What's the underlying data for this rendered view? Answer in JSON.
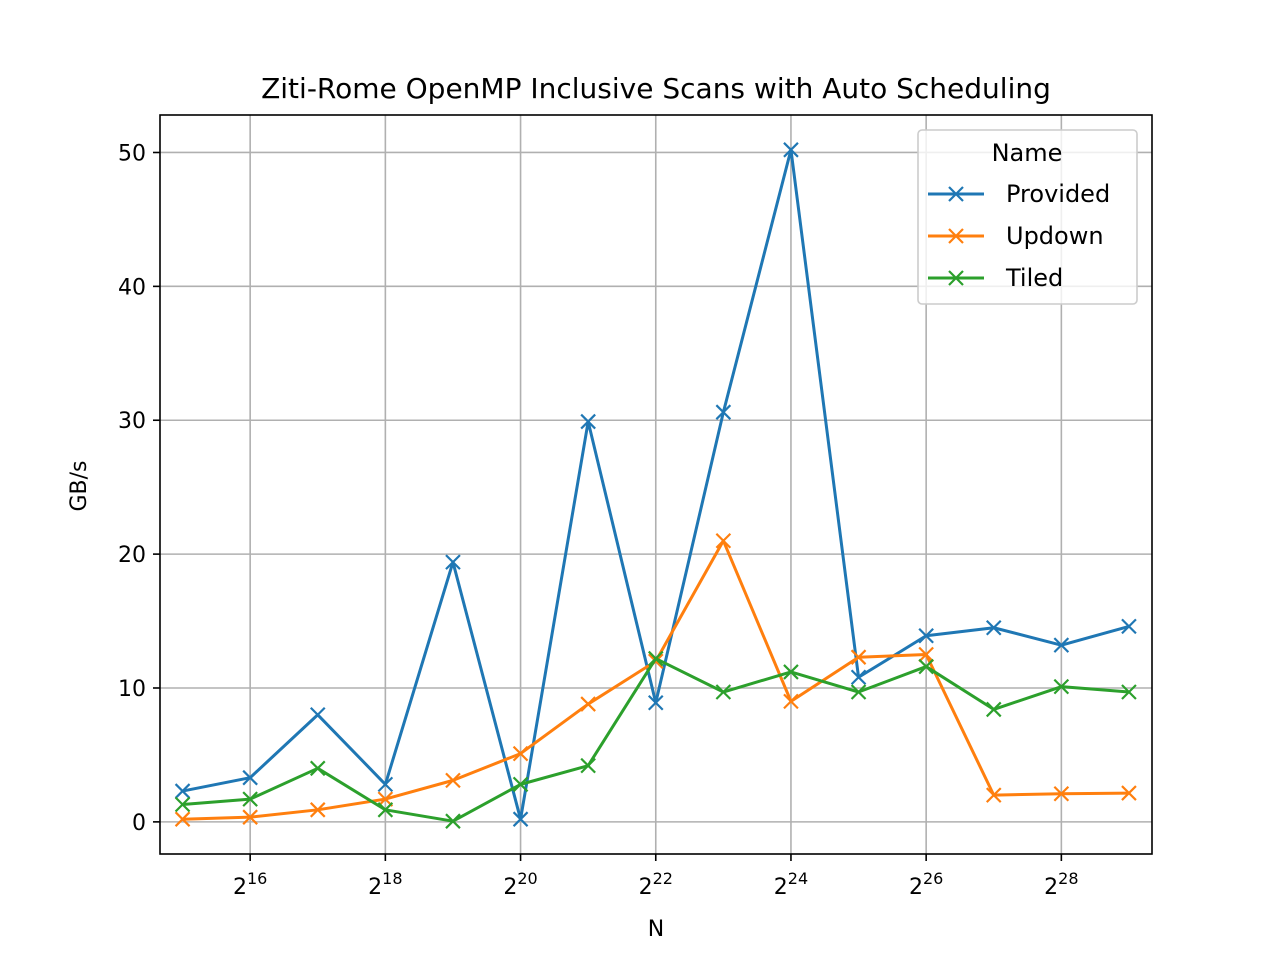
{
  "chart_data": {
    "type": "line",
    "title": "Ziti-Rome OpenMP Inclusive Scans with Auto Scheduling",
    "xlabel": "N",
    "ylabel": "GB/s",
    "xscale": "log2",
    "x": [
      32768,
      65536,
      131072,
      262144,
      524288,
      1048576,
      2097152,
      4194304,
      8388608,
      16777216,
      33554432,
      67108864,
      134217728,
      268435456,
      536870912
    ],
    "xlim": [
      26000,
      680000000
    ],
    "ylim": [
      -2.4,
      52.8
    ],
    "x_ticks": [
      {
        "value": 65536,
        "base": "2",
        "exp": "16"
      },
      {
        "value": 262144,
        "base": "2",
        "exp": "18"
      },
      {
        "value": 1048576,
        "base": "2",
        "exp": "20"
      },
      {
        "value": 4194304,
        "base": "2",
        "exp": "22"
      },
      {
        "value": 16777216,
        "base": "2",
        "exp": "24"
      },
      {
        "value": 67108864,
        "base": "2",
        "exp": "26"
      },
      {
        "value": 268435456,
        "base": "2",
        "exp": "28"
      }
    ],
    "y_ticks": [
      0,
      10,
      20,
      30,
      40,
      50
    ],
    "grid": true,
    "legend": {
      "title": "Name",
      "position": "top-right"
    },
    "series": [
      {
        "name": "Provided",
        "color": "#1f77b4",
        "marker": "x",
        "values": [
          2.3,
          3.3,
          8.0,
          2.8,
          19.4,
          0.2,
          29.9,
          8.9,
          30.6,
          50.2,
          10.8,
          13.9,
          14.5,
          13.2,
          14.6
        ]
      },
      {
        "name": "Updown",
        "color": "#ff7f0e",
        "marker": "x",
        "values": [
          0.2,
          0.35,
          0.9,
          1.7,
          3.1,
          5.1,
          8.8,
          12.0,
          21.0,
          9.0,
          12.3,
          12.5,
          2.0,
          2.1,
          2.15
        ]
      },
      {
        "name": "Tiled",
        "color": "#2ca02c",
        "marker": "x",
        "values": [
          1.3,
          1.7,
          4.0,
          0.9,
          0.05,
          2.8,
          4.2,
          12.2,
          9.7,
          11.2,
          9.7,
          11.6,
          8.4,
          10.1,
          9.7
        ]
      }
    ]
  }
}
